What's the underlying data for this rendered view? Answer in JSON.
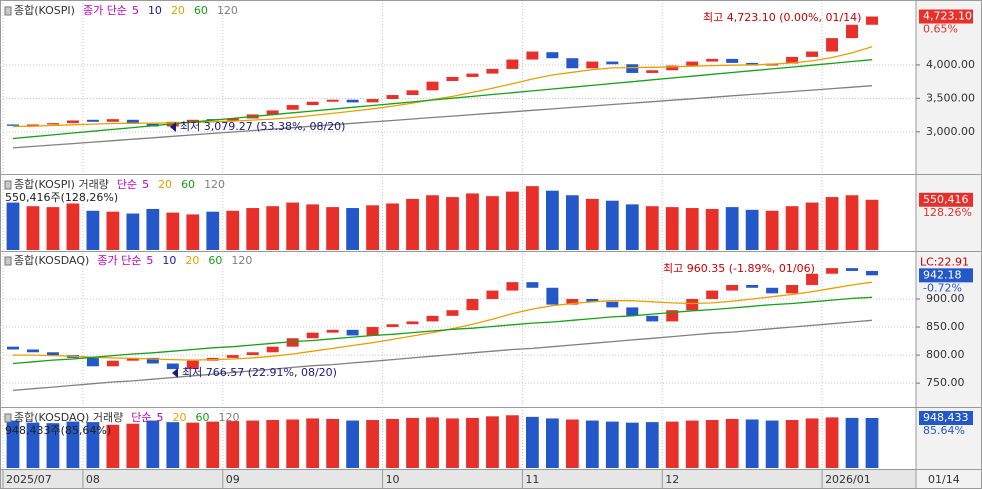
{
  "chart_data": [
    {
      "type": "candlestick",
      "title": "종합(KOSPI)",
      "legend": {
        "label": "종가 단순",
        "color": "#c000c0",
        "items": [
          {
            "label": "5",
            "color": "#c000c0"
          },
          {
            "label": "10",
            "color": "#1a1aa0"
          },
          {
            "label": "20",
            "color": "#e8a000",
            "values": [
              3080,
              3085,
              3095,
              3105,
              3115,
              3125,
              3130,
              3130,
              3135,
              3140,
              3150,
              3160,
              3175,
              3190,
              3215,
              3245,
              3275,
              3310,
              3345,
              3385,
              3430,
              3480,
              3530,
              3590,
              3650,
              3720,
              3790,
              3850,
              3890,
              3930,
              3955,
              3960,
              3965,
              3970,
              3980,
              3990,
              3995,
              4000,
              4010,
              4030,
              4060,
              4110,
              4180,
              4270
            ]
          },
          {
            "label": "60",
            "color": "#18a018",
            "values": [
              2900,
              2927,
              2955,
              2982,
              3010,
              3037,
              3064,
              3092,
              3119,
              3147,
              3174,
              3201,
              3229,
              3256,
              3284,
              3311,
              3338,
              3366,
              3393,
              3421,
              3448,
              3475,
              3503,
              3530,
              3558,
              3585,
              3612,
              3640,
              3667,
              3694,
              3722,
              3749,
              3777,
              3804,
              3831,
              3859,
              3886,
              3914,
              3941,
              3968,
              3996,
              4023,
              4051,
              4078
            ]
          },
          {
            "label": "120",
            "color": "#808080",
            "values": [
              2760,
              2782,
              2803,
              2825,
              2846,
              2868,
              2890,
              2911,
              2933,
              2954,
              2976,
              2998,
              3019,
              3041,
              3062,
              3084,
              3106,
              3127,
              3149,
              3170,
              3192,
              3214,
              3235,
              3257,
              3278,
              3300,
              3322,
              3343,
              3365,
              3386,
              3408,
              3430,
              3451,
              3473,
              3494,
              3516,
              3538,
              3559,
              3581,
              3602,
              3624,
              3646,
              3667,
              3689
            ]
          }
        ]
      },
      "open": [
        3110,
        3090,
        3110,
        3130,
        3180,
        3150,
        3180,
        3120,
        3080,
        3150,
        3190,
        3170,
        3200,
        3260,
        3330,
        3400,
        3450,
        3480,
        3440,
        3490,
        3550,
        3620,
        3760,
        3820,
        3870,
        3940,
        4080,
        4190,
        4100,
        3950,
        4050,
        4010,
        3880,
        3920,
        3990,
        4050,
        4090,
        4030,
        3990,
        4020,
        4120,
        4200,
        4400,
        4600
      ],
      "close": [
        3090,
        3110,
        3130,
        3170,
        3150,
        3190,
        3120,
        3080,
        3150,
        3180,
        3170,
        3200,
        3260,
        3320,
        3400,
        3450,
        3480,
        3440,
        3490,
        3550,
        3620,
        3750,
        3820,
        3870,
        3940,
        4080,
        4200,
        4100,
        3950,
        4050,
        4010,
        3880,
        3920,
        3990,
        4050,
        4090,
        4030,
        3990,
        4020,
        4120,
        4200,
        4400,
        4600,
        4723.1
      ],
      "up_color": "#e8302a",
      "down_color": "#2458c8",
      "ylim": [
        2400,
        4925
      ],
      "yticks": [
        {
          "value": 3000,
          "label": "3,000.00"
        },
        {
          "value": 3500,
          "label": "3,500.00"
        },
        {
          "value": 4000,
          "label": "4,000.00"
        }
      ],
      "grid": true,
      "annotations": [
        "최고 4,723.10 (0.00%, 01/14)",
        "최저 3,079.27 (53.38%, 08/20)"
      ],
      "last": {
        "value": 4723.1,
        "label": "4,723.10",
        "color": "#e8302a"
      },
      "change": "0.65%"
    },
    {
      "type": "bar",
      "title": "종합(KOSPI) 거래량",
      "legend": {
        "label": "단순",
        "color": "#c000c0",
        "items": [
          {
            "label": "5",
            "color": "#c000c0"
          },
          {
            "label": "20",
            "color": "#e8a000"
          },
          {
            "label": "60",
            "color": "#18a018"
          },
          {
            "label": "120",
            "color": "#808080"
          }
        ]
      },
      "values": [
        520000,
        480000,
        470000,
        510000,
        430000,
        420000,
        400000,
        450000,
        410000,
        390000,
        420000,
        430000,
        460000,
        480000,
        520000,
        500000,
        470000,
        460000,
        490000,
        510000,
        560000,
        600000,
        580000,
        620000,
        590000,
        640000,
        700000,
        650000,
        600000,
        560000,
        540000,
        500000,
        480000,
        470000,
        460000,
        450000,
        470000,
        440000,
        430000,
        480000,
        520000,
        580000,
        600000,
        550416
      ],
      "ylim": [
        0,
        800000
      ],
      "value_label": "550,416주(128,26%)",
      "last": {
        "value": 550416,
        "label": "550,416",
        "color": "#e8302a"
      },
      "change": "128.26%"
    },
    {
      "type": "candlestick",
      "title": "종합(KOSDAQ)",
      "legend": {
        "label": "종가 단순",
        "color": "#c000c0",
        "items": [
          {
            "label": "5",
            "color": "#c000c0"
          },
          {
            "label": "10",
            "color": "#1a1aa0"
          },
          {
            "label": "20",
            "color": "#e8a000",
            "values": [
              800,
              800,
              799,
              798,
              796,
              795,
              794,
              793,
              792,
              791,
              792,
              793,
              795,
              798,
              802,
              807,
              812,
              817,
              822,
              828,
              834,
              840,
              847,
              855,
              864,
              874,
              882,
              888,
              892,
              895,
              897,
              897,
              895,
              893,
              892,
              893,
              896,
              900,
              904,
              908,
              913,
              919,
              925,
              930
            ]
          },
          {
            "label": "60",
            "color": "#18a018",
            "values": [
              785,
              788,
              791,
              793,
              796,
              799,
              802,
              804,
              807,
              810,
              813,
              815,
              818,
              821,
              824,
              826,
              829,
              832,
              835,
              837,
              840,
              843,
              846,
              848,
              851,
              854,
              857,
              859,
              862,
              865,
              868,
              870,
              873,
              876,
              879,
              881,
              884,
              887,
              890,
              892,
              895,
              898,
              901,
              903
            ]
          },
          {
            "label": "120",
            "color": "#808080",
            "values": [
              737,
              740,
              743,
              746,
              749,
              752,
              754,
              757,
              760,
              763,
              766,
              769,
              772,
              775,
              778,
              781,
              783,
              786,
              789,
              792,
              795,
              798,
              801,
              804,
              807,
              810,
              812,
              815,
              818,
              821,
              824,
              827,
              830,
              833,
              836,
              839,
              841,
              844,
              847,
              850,
              853,
              856,
              859,
              862
            ]
          }
        ]
      },
      "open": [
        815,
        810,
        805,
        800,
        795,
        780,
        790,
        795,
        785,
        775,
        790,
        795,
        800,
        805,
        815,
        830,
        840,
        845,
        835,
        850,
        855,
        860,
        870,
        880,
        900,
        915,
        930,
        920,
        890,
        900,
        895,
        885,
        870,
        860,
        880,
        900,
        915,
        925,
        920,
        910,
        925,
        945,
        955,
        950
      ],
      "close": [
        810,
        805,
        800,
        795,
        780,
        790,
        795,
        785,
        775,
        790,
        795,
        800,
        805,
        815,
        830,
        840,
        845,
        835,
        850,
        855,
        860,
        870,
        880,
        900,
        915,
        930,
        920,
        890,
        900,
        895,
        885,
        870,
        860,
        880,
        900,
        915,
        925,
        920,
        910,
        925,
        945,
        955,
        950,
        942.18
      ],
      "up_color": "#e8302a",
      "down_color": "#2458c8",
      "ylim": [
        711,
        982
      ],
      "yticks": [
        {
          "value": 750,
          "label": "750.00"
        },
        {
          "value": 800,
          "label": "800.00"
        },
        {
          "value": 850,
          "label": "850.00"
        },
        {
          "value": 900,
          "label": "900.00"
        }
      ],
      "grid": true,
      "annotations": [
        "최고 960.35 (-1.89%, 01/06)",
        "최저 766.57 (22.91%, 08/20)"
      ],
      "last": {
        "value": 942.18,
        "label": "942.18",
        "color": "#2458c8"
      },
      "change": "-0.72%",
      "lc": "LC:22.91"
    },
    {
      "type": "bar",
      "title": "종합(KOSDAQ) 거래량",
      "legend": {
        "label": "단순",
        "color": "#c000c0",
        "items": [
          {
            "label": "5",
            "color": "#c000c0"
          },
          {
            "label": "20",
            "color": "#e8a000"
          },
          {
            "label": "60",
            "color": "#18a018"
          },
          {
            "label": "120",
            "color": "#808080"
          }
        ]
      },
      "values": [
        900000,
        860000,
        850000,
        880000,
        870000,
        820000,
        840000,
        900000,
        870000,
        860000,
        880000,
        890000,
        900000,
        910000,
        920000,
        940000,
        930000,
        900000,
        910000,
        930000,
        950000,
        960000,
        940000,
        950000,
        980000,
        1000000,
        970000,
        940000,
        920000,
        900000,
        880000,
        860000,
        870000,
        880000,
        900000,
        910000,
        930000,
        920000,
        900000,
        910000,
        940000,
        960000,
        950000,
        948433
      ],
      "ylim": [
        0,
        1100000
      ],
      "value_label": "948,433주(85,64%)",
      "last": {
        "value": 948433,
        "label": "948,433",
        "color": "#2458c8"
      },
      "change": "85.64%",
      "categories": [
        "2025/07",
        null,
        null,
        null,
        "08",
        null,
        null,
        null,
        null,
        null,
        null,
        "09",
        null,
        null,
        null,
        null,
        null,
        null,
        null,
        "10",
        null,
        null,
        null,
        null,
        null,
        null,
        "11",
        null,
        null,
        null,
        null,
        null,
        null,
        "12",
        null,
        null,
        null,
        null,
        null,
        null,
        null,
        "2026/01",
        null,
        null
      ],
      "last_date": "01/14"
    }
  ]
}
